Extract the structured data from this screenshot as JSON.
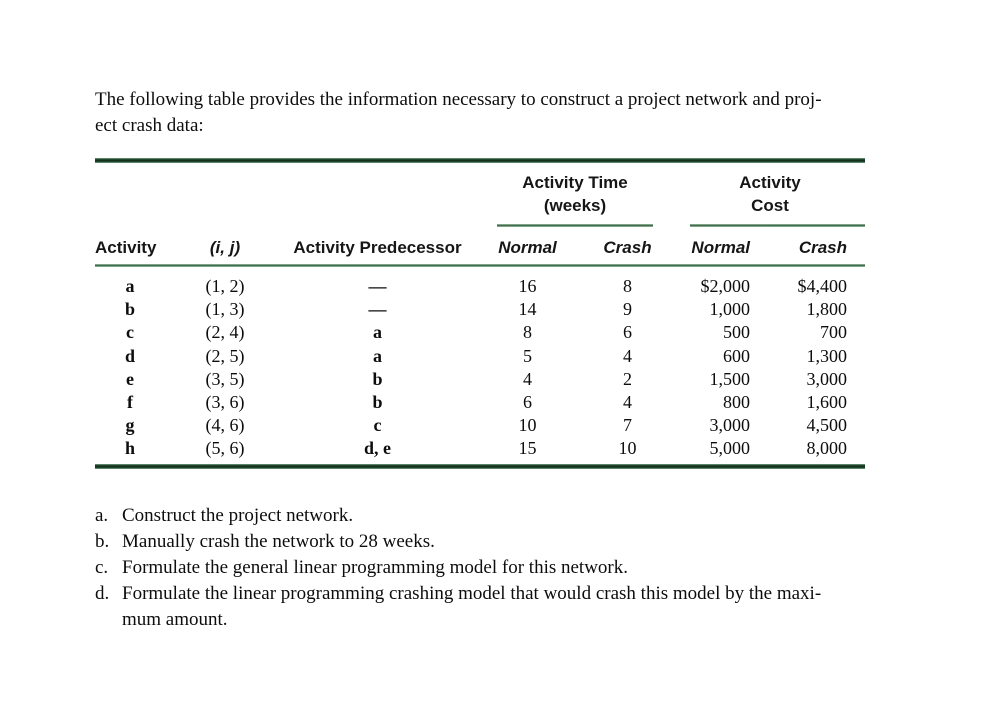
{
  "page": {
    "intro_line1": "The following table provides the information necessary to construct a project network and proj-",
    "intro_line2": "ect crash data:"
  },
  "table": {
    "spanners": {
      "time_line1": "Activity Time",
      "time_line2": "(weeks)",
      "cost_line1": "Activity",
      "cost_line2": "Cost"
    },
    "headers": {
      "activity": "Activity",
      "ij": "(i, j)",
      "predecessor": "Activity Predecessor",
      "time_normal": "Normal",
      "time_crash": "Crash",
      "cost_normal": "Normal",
      "cost_crash": "Crash"
    },
    "rows": [
      {
        "activity": "a",
        "ij": "(1, 2)",
        "pred": "—",
        "tn": "16",
        "tc": "8",
        "cn": "$2,000",
        "cc": "$4,400"
      },
      {
        "activity": "b",
        "ij": "(1, 3)",
        "pred": "—",
        "tn": "14",
        "tc": "9",
        "cn": "1,000",
        "cc": "1,800"
      },
      {
        "activity": "c",
        "ij": "(2, 4)",
        "pred": "a",
        "tn": "8",
        "tc": "6",
        "cn": "500",
        "cc": "700"
      },
      {
        "activity": "d",
        "ij": "(2, 5)",
        "pred": "a",
        "tn": "5",
        "tc": "4",
        "cn": "600",
        "cc": "1,300"
      },
      {
        "activity": "e",
        "ij": "(3, 5)",
        "pred": "b",
        "tn": "4",
        "tc": "2",
        "cn": "1,500",
        "cc": "3,000"
      },
      {
        "activity": "f",
        "ij": "(3, 6)",
        "pred": "b",
        "tn": "6",
        "tc": "4",
        "cn": "800",
        "cc": "1,600"
      },
      {
        "activity": "g",
        "ij": "(4, 6)",
        "pred": "c",
        "tn": "10",
        "tc": "7",
        "cn": "3,000",
        "cc": "4,500"
      },
      {
        "activity": "h",
        "ij": "(5, 6)",
        "pred": "d, e",
        "tn": "15",
        "tc": "10",
        "cn": "5,000",
        "cc": "8,000"
      }
    ]
  },
  "questions": {
    "items": [
      {
        "marker": "a.",
        "text": "Construct the project network."
      },
      {
        "marker": "b.",
        "text": "Manually crash the network to 28 weeks."
      },
      {
        "marker": "c.",
        "text": "Formulate the general linear programming model for this network."
      },
      {
        "marker": "d.",
        "text": "Formulate the linear programming crashing model that would crash this model by the maxi-",
        "text2": "mum amount."
      }
    ]
  },
  "colors": {
    "rule_dark_green": "#122c1b",
    "rule_mid_green": "#2f5c3a",
    "rule_light_green": "#a9c8b0",
    "text": "#0d0d0d",
    "background": "#ffffff"
  }
}
